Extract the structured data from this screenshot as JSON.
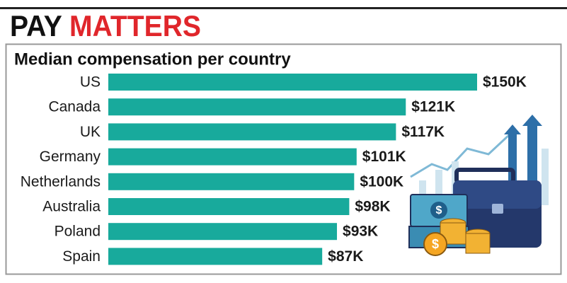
{
  "chart_data": {
    "type": "bar",
    "orientation": "horizontal",
    "title": [
      "PAY",
      "MATTERS"
    ],
    "subtitle": "Median compensation per country",
    "categories": [
      "US",
      "Canada",
      "UK",
      "Germany",
      "Netherlands",
      "Australia",
      "Poland",
      "Spain"
    ],
    "values": [
      150000,
      121000,
      117000,
      101000,
      100000,
      98000,
      93000,
      87000
    ],
    "value_labels": [
      "$150K",
      "$121K",
      "$117K",
      "$101K",
      "$100K",
      "$98K",
      "$93K",
      "$87K"
    ],
    "color": "#18aa9c",
    "xlim": [
      0,
      150000
    ]
  }
}
